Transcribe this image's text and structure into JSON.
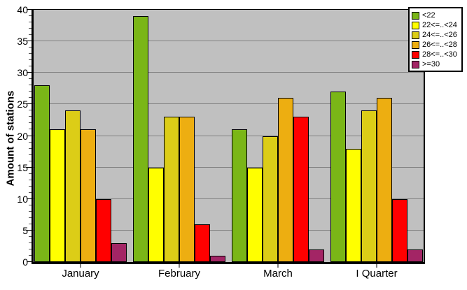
{
  "chart_data": {
    "type": "bar",
    "title": "",
    "xlabel": "",
    "ylabel": "Amount of stations",
    "categories": [
      "January",
      "February",
      "March",
      "I Quarter"
    ],
    "series": [
      {
        "name": "<22",
        "color": "#7AB617",
        "values": [
          28,
          39,
          21,
          27
        ]
      },
      {
        "name": "22<=..<24",
        "color": "#FFFF00",
        "values": [
          21,
          15,
          15,
          18
        ]
      },
      {
        "name": "24<=..<26",
        "color": "#DCCD17",
        "values": [
          24,
          23,
          20,
          24
        ]
      },
      {
        "name": "26<=..<28",
        "color": "#EDAE11",
        "values": [
          21,
          23,
          26,
          26
        ]
      },
      {
        "name": "28<=..<30",
        "color": "#FF0000",
        "values": [
          10,
          6,
          23,
          10
        ]
      },
      {
        "name": ">=30",
        "color": "#A32565",
        "values": [
          3,
          1,
          2,
          2
        ]
      }
    ],
    "ylim": [
      0,
      40
    ],
    "y_step": 5,
    "y_minor_step": 1,
    "y_ticks": [
      "0",
      "5",
      "10",
      "15",
      "20",
      "25",
      "30",
      "35",
      "40"
    ],
    "grid": true,
    "legend_position": "top-right",
    "plot_bg": "#C0C0C0",
    "grid_color": "#808080",
    "bar_border_color": "#000000"
  }
}
